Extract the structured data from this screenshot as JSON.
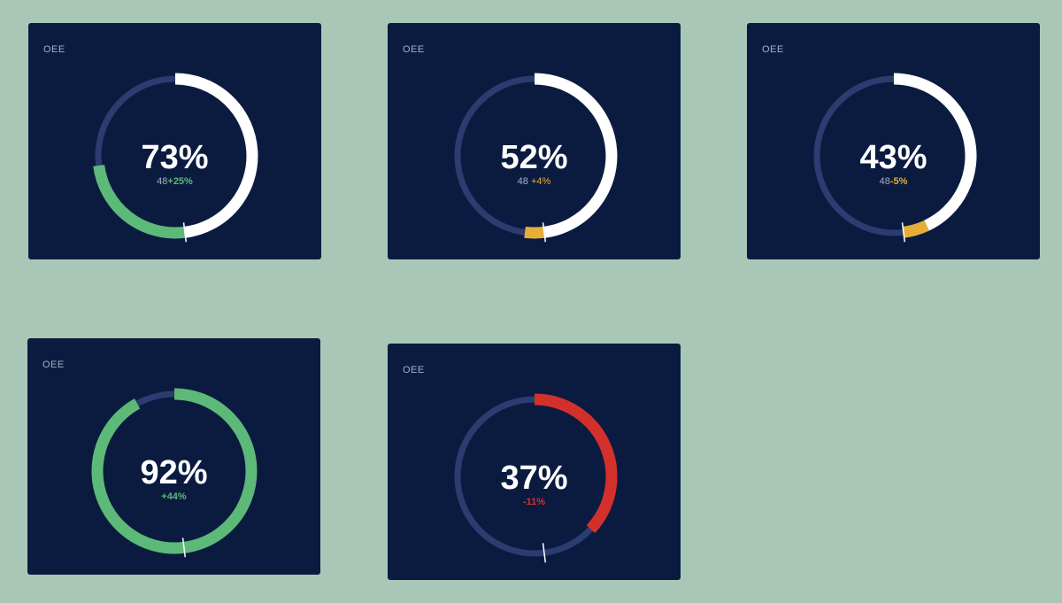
{
  "colors": {
    "background": "#a9c7b7",
    "card": "#0b1b40",
    "track": "#2c3b70",
    "reference": "#ffffff",
    "positive": "#5db978",
    "neutral": "#e5ae37",
    "negative": "#d3302c"
  },
  "cards": [
    {
      "label": "OEE",
      "value": "73%",
      "baseline": "48",
      "delta": "+25%",
      "value_fraction": 0.73,
      "baseline_fraction": 0.48,
      "status": "positive"
    },
    {
      "label": "OEE",
      "value": "52%",
      "baseline": "48",
      "delta": "+4%",
      "value_fraction": 0.52,
      "baseline_fraction": 0.48,
      "status": "neutral"
    },
    {
      "label": "OEE",
      "value": "43%",
      "baseline": "48",
      "delta": "-5%",
      "value_fraction": 0.43,
      "baseline_fraction": 0.48,
      "status": "neutral"
    },
    {
      "label": "OEE",
      "value": "92%",
      "baseline": "",
      "delta": "+44%",
      "value_fraction": 0.92,
      "baseline_fraction": 0.48,
      "status": "positive"
    },
    {
      "label": "OEE",
      "value": "37%",
      "baseline": "",
      "delta": "-11%",
      "value_fraction": 0.37,
      "baseline_fraction": 0.48,
      "status": "negative"
    }
  ]
}
